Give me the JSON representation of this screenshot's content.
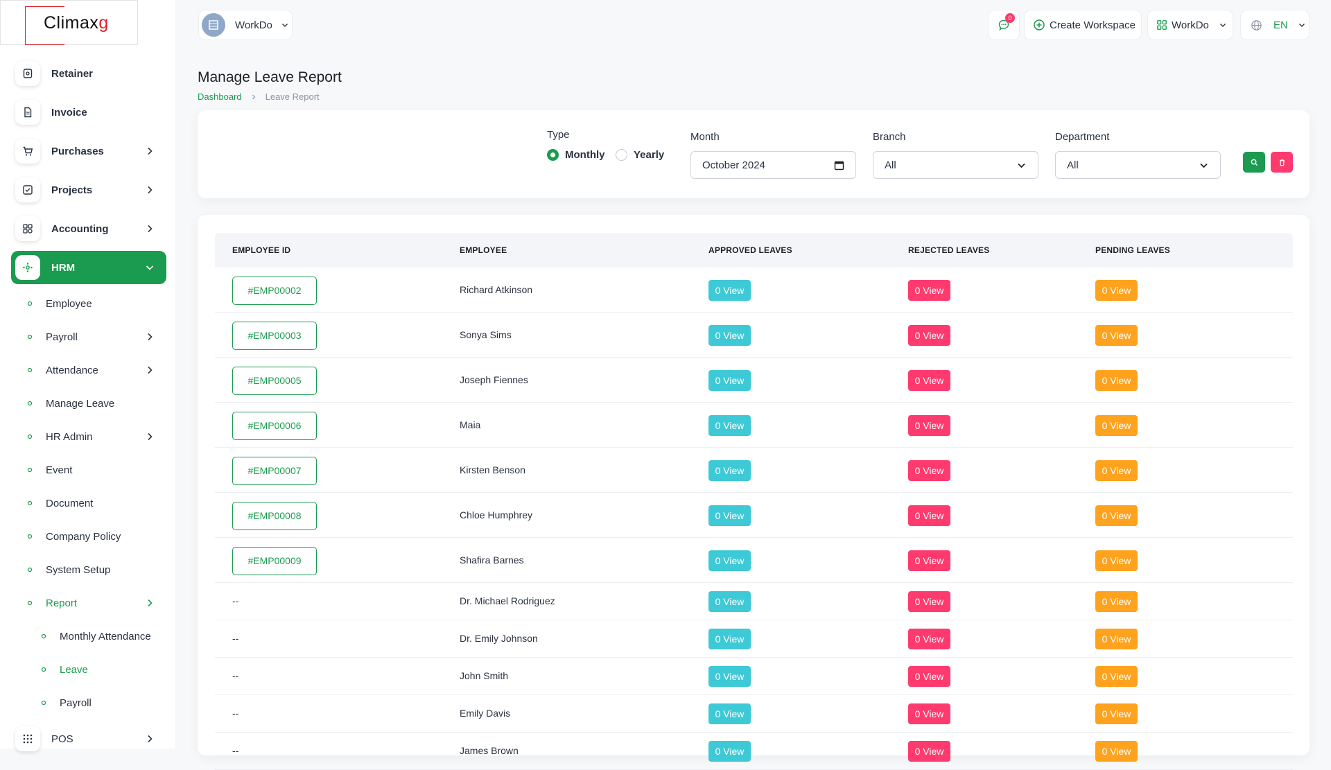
{
  "brand": {
    "logo_text_main": "Climax",
    "logo_text_accent": "g"
  },
  "workspace": {
    "name": "WorkDo"
  },
  "header": {
    "notification_count": "0",
    "create_workspace_label": "Create Workspace",
    "workspace_menu_label": "WorkDo",
    "language_label": "EN"
  },
  "sidebar": {
    "items": [
      {
        "label": "Retainer",
        "icon": "retainer-icon"
      },
      {
        "label": "Invoice",
        "icon": "invoice-icon"
      },
      {
        "label": "Purchases",
        "icon": "cart-icon"
      },
      {
        "label": "Projects",
        "icon": "projects-icon"
      },
      {
        "label": "Accounting",
        "icon": "accounting-icon"
      },
      {
        "label": "HRM",
        "icon": "hrm-icon"
      }
    ],
    "hrm_sub": [
      "Employee",
      "Payroll",
      "Attendance",
      "Manage Leave",
      "HR Admin",
      "Event",
      "Document",
      "Company Policy",
      "System Setup",
      "Report"
    ],
    "report_sub": [
      "Monthly Attendance",
      "Leave",
      "Payroll"
    ],
    "pos_label": "POS"
  },
  "page": {
    "title": "Manage Leave Report",
    "breadcrumb_home": "Dashboard",
    "breadcrumb_current": "Leave Report"
  },
  "filters": {
    "type_label": "Type",
    "type_options": [
      "Monthly",
      "Yearly"
    ],
    "type_selected": "Monthly",
    "month_label": "Month",
    "month_value": "October 2024",
    "branch_label": "Branch",
    "branch_value": "All",
    "department_label": "Department",
    "department_value": "All"
  },
  "table": {
    "columns": [
      "EMPLOYEE ID",
      "EMPLOYEE",
      "APPROVED LEAVES",
      "REJECTED LEAVES",
      "PENDING LEAVES"
    ],
    "rows": [
      {
        "id": "#EMP00002",
        "name": "Richard Atkinson",
        "approved": "0 View",
        "rejected": "0 View",
        "pending": "0 View"
      },
      {
        "id": "#EMP00003",
        "name": "Sonya Sims",
        "approved": "0 View",
        "rejected": "0 View",
        "pending": "0 View"
      },
      {
        "id": "#EMP00005",
        "name": "Joseph Fiennes",
        "approved": "0 View",
        "rejected": "0 View",
        "pending": "0 View"
      },
      {
        "id": "#EMP00006",
        "name": "Maia",
        "approved": "0 View",
        "rejected": "0 View",
        "pending": "0 View"
      },
      {
        "id": "#EMP00007",
        "name": "Kirsten Benson",
        "approved": "0 View",
        "rejected": "0 View",
        "pending": "0 View"
      },
      {
        "id": "#EMP00008",
        "name": "Chloe Humphrey",
        "approved": "0 View",
        "rejected": "0 View",
        "pending": "0 View"
      },
      {
        "id": "#EMP00009",
        "name": "Shafira Barnes",
        "approved": "0 View",
        "rejected": "0 View",
        "pending": "0 View"
      },
      {
        "id": "--",
        "name": "Dr. Michael Rodriguez",
        "approved": "0 View",
        "rejected": "0 View",
        "pending": "0 View"
      },
      {
        "id": "--",
        "name": "Dr. Emily Johnson",
        "approved": "0 View",
        "rejected": "0 View",
        "pending": "0 View"
      },
      {
        "id": "--",
        "name": "John Smith",
        "approved": "0 View",
        "rejected": "0 View",
        "pending": "0 View"
      },
      {
        "id": "--",
        "name": "Emily Davis",
        "approved": "0 View",
        "rejected": "0 View",
        "pending": "0 View"
      },
      {
        "id": "--",
        "name": "James Brown",
        "approved": "0 View",
        "rejected": "0 View",
        "pending": "0 View"
      }
    ]
  },
  "colors": {
    "primary": "#1a9b4f",
    "approved": "#3ec9d6",
    "rejected": "#ff3a6e",
    "pending": "#ffa21d"
  }
}
